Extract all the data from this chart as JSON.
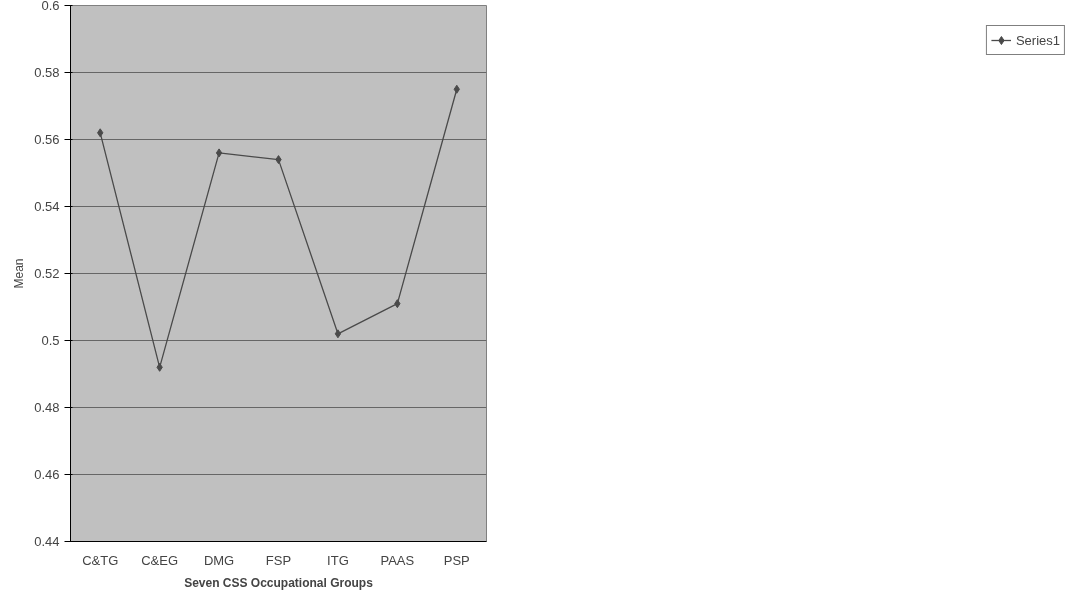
{
  "chart_data": {
    "type": "line",
    "xlabel": "Seven CSS Occupational Groups",
    "ylabel": "Mean",
    "categories": [
      "C&TG",
      "C&EG",
      "DMG",
      "FSP",
      "ITG",
      "PAAS",
      "PSP"
    ],
    "series": [
      {
        "name": "Series1",
        "color": "#4a4a4a",
        "values": [
          0.562,
          0.492,
          0.556,
          0.554,
          0.502,
          0.511,
          0.575
        ]
      }
    ],
    "ylim": [
      0.44,
      0.6
    ],
    "yticks": [
      0.44,
      0.46,
      0.48,
      0.5,
      0.52,
      0.54,
      0.56,
      0.58,
      0.6
    ],
    "grid": "y",
    "legend": "right",
    "marker": "diamond",
    "line_style": "solid"
  }
}
